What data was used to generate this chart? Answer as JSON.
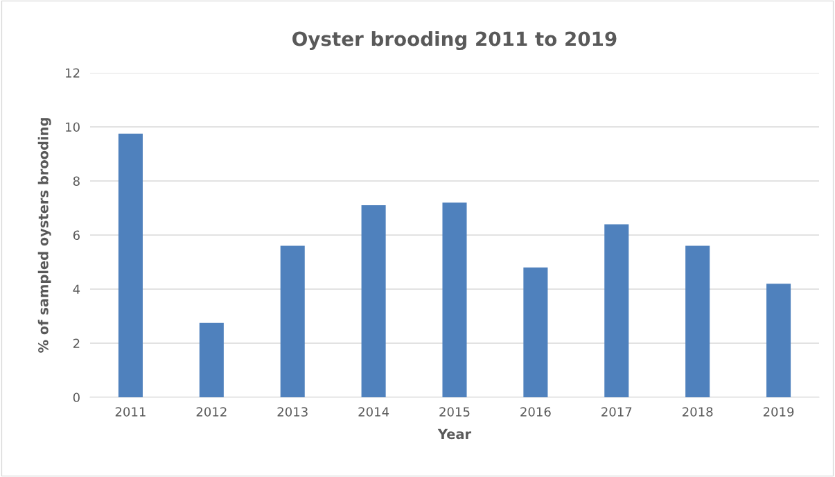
{
  "chart_data": {
    "type": "bar",
    "title": "Oyster brooding 2011 to 2019",
    "xlabel": "Year",
    "ylabel": "% of sampled oysters brooding",
    "categories": [
      "2011",
      "2012",
      "2013",
      "2014",
      "2015",
      "2016",
      "2017",
      "2018",
      "2019"
    ],
    "values": [
      9.75,
      2.75,
      5.6,
      7.1,
      7.2,
      4.8,
      6.4,
      5.6,
      4.2
    ],
    "color": "#4f81bd",
    "ylim": [
      0,
      12
    ],
    "yticks": [
      0,
      2,
      4,
      6,
      8,
      10,
      12
    ],
    "grid": "y",
    "legend": false
  }
}
